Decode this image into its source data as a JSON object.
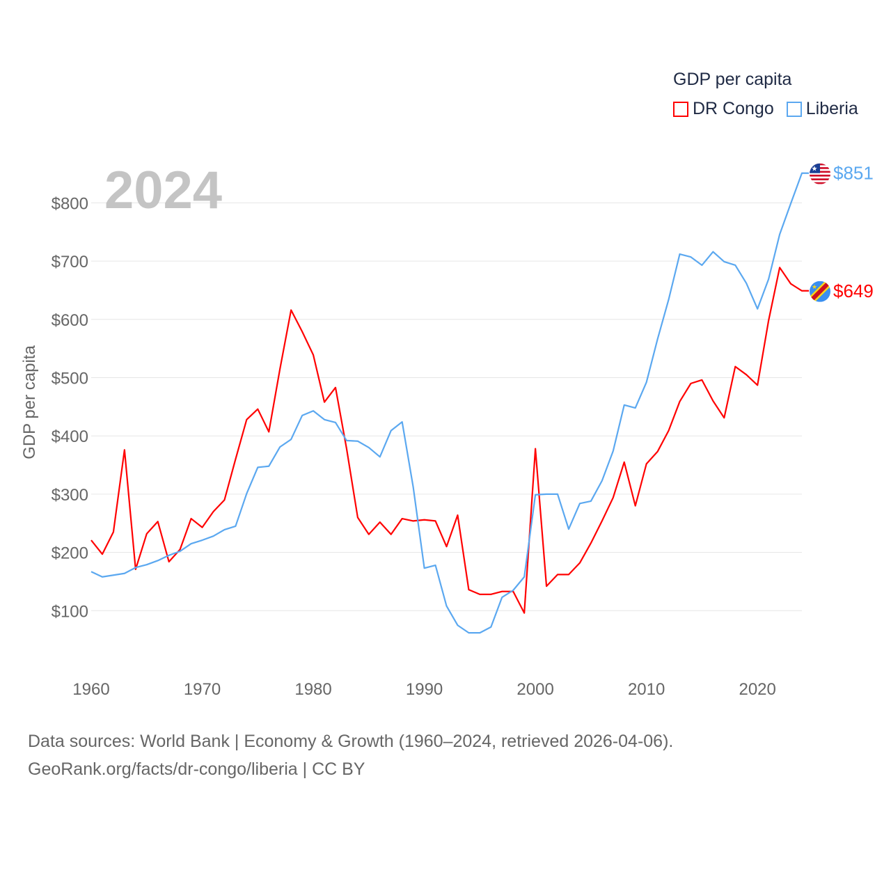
{
  "chart_data": {
    "type": "line",
    "title": "GDP per capita",
    "ylabel": "GDP per capita",
    "xlabel": "",
    "year_label": "2024",
    "xlim": [
      1960,
      2024
    ],
    "ylim": [
      0,
      850
    ],
    "x_ticks": [
      1960,
      1970,
      1980,
      1990,
      2000,
      2010,
      2020
    ],
    "y_ticks": [
      100,
      200,
      300,
      400,
      500,
      600,
      700,
      800
    ],
    "y_tick_labels": [
      "$100",
      "$200",
      "$300",
      "$400",
      "$500",
      "$600",
      "$700",
      "$800"
    ],
    "grid": true,
    "legend_placement": "top-right",
    "series": [
      {
        "name": "DR Congo",
        "color": "#ff0000",
        "end_label": "$649",
        "flag": "dr-congo-flag",
        "values": [
          221,
          197,
          235,
          376,
          171,
          232,
          253,
          184,
          205,
          258,
          243,
          270,
          290,
          360,
          428,
          446,
          407,
          515,
          616,
          579,
          539,
          458,
          483,
          378,
          260,
          231,
          252,
          231,
          258,
          254,
          256,
          254,
          210,
          264,
          136,
          128,
          128,
          133,
          133,
          96,
          378,
          142,
          162,
          162,
          182,
          216,
          254,
          294,
          355,
          280,
          352,
          373,
          409,
          459,
          490,
          496,
          460,
          431,
          519,
          505,
          487,
          598,
          689,
          661,
          649
        ]
      },
      {
        "name": "Liberia",
        "color": "#5ba8f0",
        "end_label": "$851",
        "flag": "liberia-flag",
        "values": [
          167,
          158,
          161,
          164,
          174,
          179,
          186,
          195,
          202,
          215,
          221,
          228,
          239,
          245,
          301,
          346,
          348,
          381,
          394,
          435,
          443,
          428,
          423,
          392,
          391,
          380,
          364,
          409,
          424,
          312,
          173,
          178,
          108,
          75,
          62,
          62,
          72,
          123,
          135,
          158,
          299,
          300,
          300,
          240,
          284,
          288,
          323,
          374,
          453,
          448,
          492,
          566,
          634,
          712,
          707,
          693,
          716,
          699,
          693,
          662,
          618,
          669,
          746,
          799,
          851
        ]
      }
    ]
  },
  "source": {
    "line1": "Data sources: World Bank | Economy & Growth (1960–2024, retrieved 2026-04-06).",
    "line2": "GeoRank.org/facts/dr-congo/liberia | CC BY"
  }
}
